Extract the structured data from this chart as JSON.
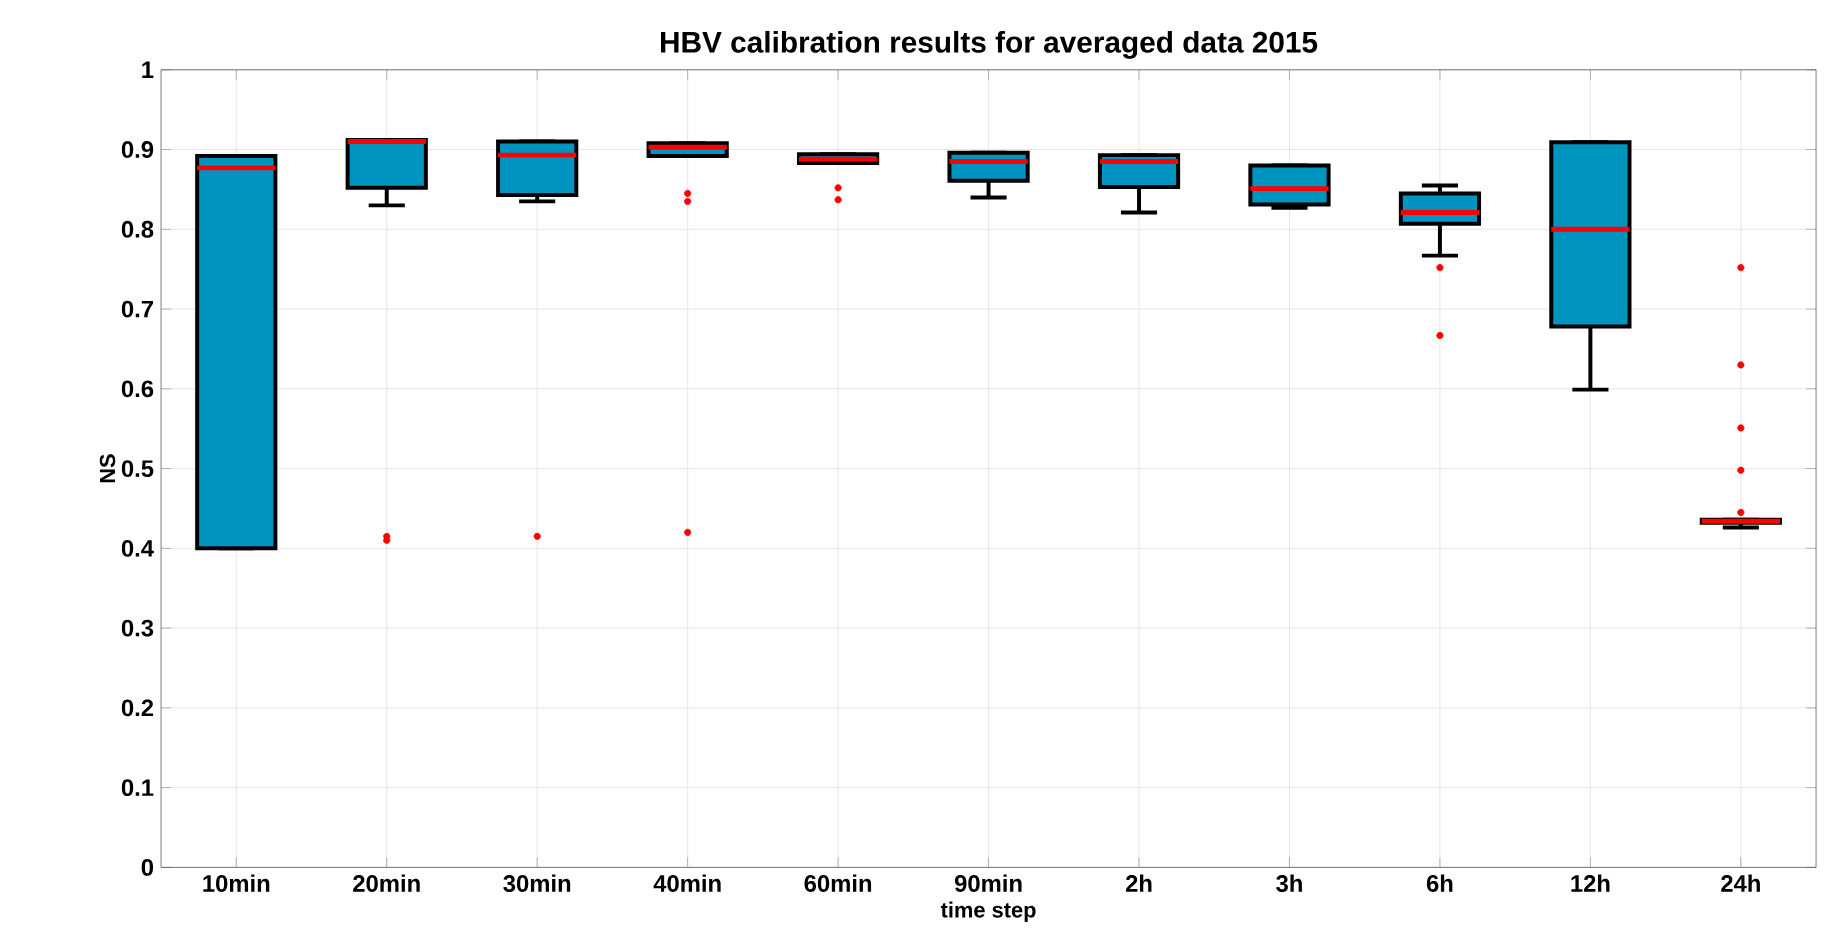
{
  "chart_data": {
    "type": "box",
    "title": "HBV calibration results for averaged data 2015",
    "xlabel": "time step",
    "ylabel": "NS",
    "categories": [
      "10min",
      "20min",
      "30min",
      "40min",
      "60min",
      "90min",
      "2h",
      "3h",
      "6h",
      "12h",
      "24h"
    ],
    "color": "#0094c0",
    "ylim": [
      0,
      1
    ],
    "yticks": [
      0,
      0.1,
      0.2,
      0.3,
      0.4,
      0.5,
      0.6,
      0.7,
      0.8,
      0.9,
      1
    ],
    "grid": true,
    "boxes": [
      {
        "low": 0.4,
        "q1": 0.4,
        "median": 0.877,
        "q3": 0.892,
        "high": 0.892
      },
      {
        "low": 0.83,
        "q1": 0.852,
        "median": 0.91,
        "q3": 0.912,
        "high": 0.912,
        "outliers": [
          0.415,
          0.41
        ]
      },
      {
        "low": 0.835,
        "q1": 0.843,
        "median": 0.893,
        "q3": 0.91,
        "high": 0.91,
        "outliers": [
          0.415
        ]
      },
      {
        "low": 0.892,
        "q1": 0.892,
        "median": 0.903,
        "q3": 0.908,
        "high": 0.908,
        "outliers": [
          0.845,
          0.835,
          0.42
        ]
      },
      {
        "low": 0.883,
        "q1": 0.883,
        "median": 0.888,
        "q3": 0.894,
        "high": 0.894,
        "outliers": [
          0.852,
          0.837
        ]
      },
      {
        "low": 0.84,
        "q1": 0.861,
        "median": 0.885,
        "q3": 0.896,
        "high": 0.896
      },
      {
        "low": 0.821,
        "q1": 0.853,
        "median": 0.885,
        "q3": 0.893,
        "high": 0.893
      },
      {
        "low": 0.827,
        "q1": 0.831,
        "median": 0.851,
        "q3": 0.88,
        "high": 0.88
      },
      {
        "low": 0.767,
        "q1": 0.807,
        "median": 0.821,
        "q3": 0.845,
        "high": 0.855,
        "outliers": [
          0.752,
          0.667
        ]
      },
      {
        "low": 0.599,
        "q1": 0.678,
        "median": 0.8,
        "q3": 0.909,
        "high": 0.909
      },
      {
        "low": 0.426,
        "q1": 0.432,
        "median": 0.434,
        "q3": 0.436,
        "high": 0.436,
        "outliers": [
          0.752,
          0.63,
          0.551,
          0.498,
          0.445
        ]
      }
    ]
  }
}
